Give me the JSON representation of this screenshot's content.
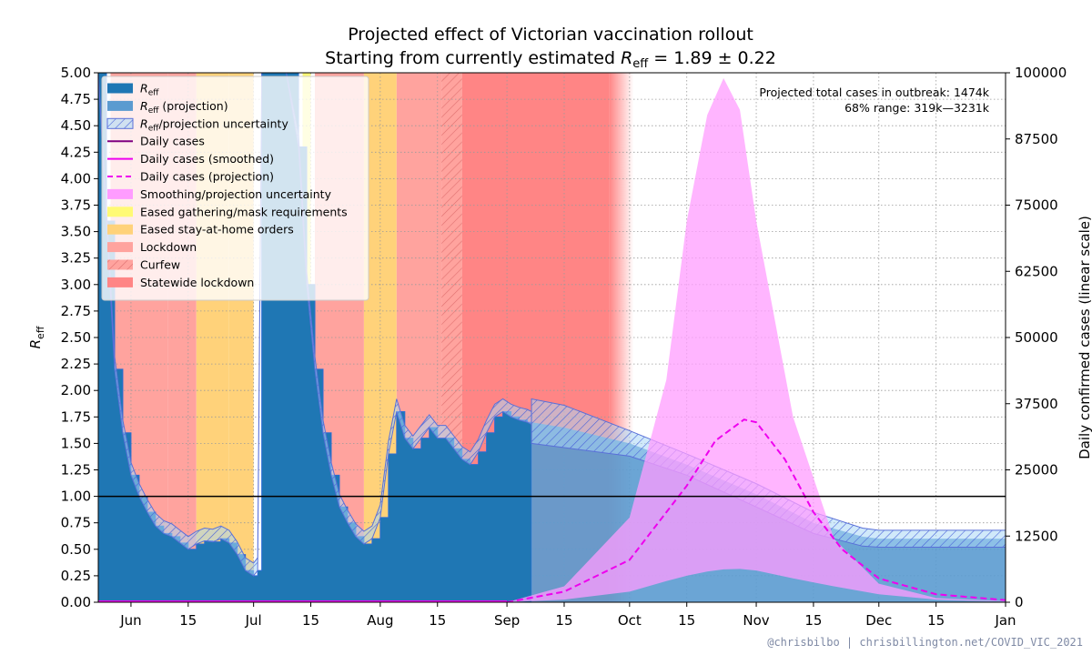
{
  "chart_data": {
    "type": "area",
    "title": "Projected effect of Victorian vaccination rollout",
    "subtitle": "Starting from currently estimated R_eff = 1.89 ± 0.22",
    "ylabel_left": "R_eff",
    "ylabel_right": "Daily confirmed cases (linear scale)",
    "credit": "@chrisbilbo | chrisbillington.net/COVID_VIC_2021",
    "annotation": {
      "line1": "Projected total cases in outbreak:  1474k",
      "line2": "68% range:  319k—3231k"
    },
    "x_range": [
      "2021-05-24",
      "2022-01-01"
    ],
    "x_ticks": [
      {
        "date": "2021-06-01",
        "label": "Jun"
      },
      {
        "date": "2021-06-15",
        "label": "15"
      },
      {
        "date": "2021-07-01",
        "label": "Jul"
      },
      {
        "date": "2021-07-15",
        "label": "15"
      },
      {
        "date": "2021-08-01",
        "label": "Aug"
      },
      {
        "date": "2021-08-15",
        "label": "15"
      },
      {
        "date": "2021-09-01",
        "label": "Sep"
      },
      {
        "date": "2021-09-15",
        "label": "15"
      },
      {
        "date": "2021-10-01",
        "label": "Oct"
      },
      {
        "date": "2021-10-15",
        "label": "15"
      },
      {
        "date": "2021-11-01",
        "label": "Nov"
      },
      {
        "date": "2021-11-15",
        "label": "15"
      },
      {
        "date": "2021-12-01",
        "label": "Dec"
      },
      {
        "date": "2021-12-15",
        "label": "15"
      },
      {
        "date": "2022-01-01",
        "label": "Jan"
      }
    ],
    "y_left": {
      "min": 0,
      "max": 5,
      "ticks": [
        "0.00",
        "0.25",
        "0.50",
        "0.75",
        "1.00",
        "1.25",
        "1.50",
        "1.75",
        "2.00",
        "2.25",
        "2.50",
        "2.75",
        "3.00",
        "3.25",
        "3.50",
        "3.75",
        "4.00",
        "4.25",
        "4.50",
        "4.75",
        "5.00"
      ]
    },
    "y_right": {
      "min": 0,
      "max": 100000,
      "ticks": [
        "0",
        "12500",
        "25000",
        "37500",
        "50000",
        "62500",
        "75000",
        "87500",
        "100000"
      ]
    },
    "reference_line": {
      "y": 1.0
    },
    "grid": true,
    "legend_position": "upper-left",
    "legend": [
      {
        "label": "R_eff",
        "style": "patch",
        "color": "#1f77b4"
      },
      {
        "label": "R_eff (projection)",
        "style": "patch",
        "color": "#5b9bd0"
      },
      {
        "label": "R_eff/projection uncertainty",
        "style": "hatch",
        "color": "#a9d6f5"
      },
      {
        "label": "Daily cases",
        "style": "line",
        "color": "#800080"
      },
      {
        "label": "Daily cases (smoothed)",
        "style": "line",
        "color": "#ee00ee"
      },
      {
        "label": "Daily cases (projection)",
        "style": "dash",
        "color": "#ee00ee"
      },
      {
        "label": "Smoothing/projection uncertainty",
        "style": "patch",
        "color": "#ff9cff"
      },
      {
        "label": "Eased gathering/mask requirements",
        "style": "patch",
        "color": "#fffa75"
      },
      {
        "label": "Eased stay-at-home orders",
        "style": "patch",
        "color": "#ffd27a"
      },
      {
        "label": "Lockdown",
        "style": "patch",
        "color": "#ffa39e"
      },
      {
        "label": "Curfew",
        "style": "hatchred",
        "color": "#ffa39e"
      },
      {
        "label": "Statewide lockdown",
        "style": "patch",
        "color": "#ff8585"
      }
    ],
    "policy_periods": [
      {
        "start": "2021-05-27",
        "end": "2021-06-10",
        "type": "Lockdown",
        "color": "#ffa39e"
      },
      {
        "start": "2021-06-10",
        "end": "2021-06-17",
        "type": "Lockdown",
        "color": "#ffa39e"
      },
      {
        "start": "2021-06-17",
        "end": "2021-06-25",
        "type": "Eased stay-at-home orders",
        "color": "#ffd27a"
      },
      {
        "start": "2021-06-25",
        "end": "2021-07-01",
        "type": "Eased stay-at-home orders",
        "color": "#ffd27a"
      },
      {
        "start": "2021-07-13",
        "end": "2021-07-15",
        "type": "Eased gathering/mask requirements",
        "color": "#fffa75"
      },
      {
        "start": "2021-07-16",
        "end": "2021-07-28",
        "type": "Lockdown",
        "color": "#ffa39e"
      },
      {
        "start": "2021-07-28",
        "end": "2021-08-05",
        "type": "Eased stay-at-home orders",
        "color": "#ffd27a"
      },
      {
        "start": "2021-08-05",
        "end": "2021-08-16",
        "type": "Lockdown",
        "color": "#ffa39e"
      },
      {
        "start": "2021-08-16",
        "end": "2021-08-21",
        "type": "Curfew",
        "color": "#ffa39e"
      },
      {
        "start": "2021-08-21",
        "end": "2021-09-26",
        "type": "Statewide lockdown",
        "color": "#ff8585"
      },
      {
        "start": "2021-09-26",
        "end": "2021-10-02",
        "type": "Statewide lockdown (fading)",
        "color": "#ff8585"
      }
    ],
    "series": [
      {
        "name": "R_eff",
        "color": "#1f77b4",
        "dates": [
          "2021-05-24",
          "2021-05-26",
          "2021-05-28",
          "2021-05-30",
          "2021-06-01",
          "2021-06-03",
          "2021-06-05",
          "2021-06-07",
          "2021-06-09",
          "2021-06-11",
          "2021-06-13",
          "2021-06-15",
          "2021-06-17",
          "2021-06-19",
          "2021-06-21",
          "2021-06-23",
          "2021-06-25",
          "2021-06-27",
          "2021-06-29",
          "2021-07-01",
          "2021-07-02",
          "2021-07-03",
          "2021-07-06",
          "2021-07-09",
          "2021-07-12",
          "2021-07-14",
          "2021-07-16",
          "2021-07-18",
          "2021-07-20",
          "2021-07-22",
          "2021-07-24",
          "2021-07-26",
          "2021-07-28",
          "2021-07-30",
          "2021-08-01",
          "2021-08-03",
          "2021-08-05",
          "2021-08-07",
          "2021-08-09",
          "2021-08-11",
          "2021-08-13",
          "2021-08-15",
          "2021-08-17",
          "2021-08-19",
          "2021-08-21",
          "2021-08-23",
          "2021-08-25",
          "2021-08-27",
          "2021-08-29",
          "2021-08-31",
          "2021-09-02",
          "2021-09-04",
          "2021-09-06",
          "2021-09-07"
        ],
        "values": [
          5.0,
          3.6,
          2.2,
          1.6,
          1.2,
          1.0,
          0.85,
          0.72,
          0.65,
          0.62,
          0.56,
          0.5,
          0.55,
          0.58,
          0.57,
          0.6,
          0.56,
          0.45,
          0.3,
          0.25,
          0.3,
          5.0,
          5.0,
          5.0,
          4.3,
          3.0,
          2.2,
          1.6,
          1.2,
          0.9,
          0.75,
          0.62,
          0.55,
          0.6,
          0.8,
          1.4,
          1.8,
          1.55,
          1.45,
          1.55,
          1.65,
          1.55,
          1.55,
          1.45,
          1.35,
          1.3,
          1.42,
          1.6,
          1.75,
          1.8,
          1.75,
          1.72,
          1.7,
          1.68
        ]
      },
      {
        "name": "R_eff (projection)",
        "color": "#5b9bd0",
        "dates": [
          "2021-09-07",
          "2021-09-15",
          "2021-10-01",
          "2021-10-15",
          "2021-11-01",
          "2021-11-15",
          "2021-11-27",
          "2021-12-01",
          "2022-01-01"
        ],
        "values": [
          1.7,
          1.65,
          1.5,
          1.3,
          1.02,
          0.75,
          0.62,
          0.6,
          0.6
        ]
      },
      {
        "name": "R_eff/projection uncertainty",
        "color": "#a9d6f5",
        "dates": [
          "2021-09-07",
          "2021-09-15",
          "2021-10-01",
          "2021-10-15",
          "2021-11-01",
          "2021-11-15",
          "2021-11-27",
          "2021-12-01",
          "2022-01-01"
        ],
        "upper": [
          1.92,
          1.86,
          1.62,
          1.4,
          1.12,
          0.85,
          0.7,
          0.68,
          0.68
        ],
        "lower": [
          1.5,
          1.46,
          1.38,
          1.2,
          0.9,
          0.65,
          0.53,
          0.52,
          0.52
        ]
      },
      {
        "name": "Daily cases (projection)",
        "color": "#ee00ee",
        "dates": [
          "2021-09-01",
          "2021-09-15",
          "2021-10-01",
          "2021-10-15",
          "2021-10-22",
          "2021-10-29",
          "2021-11-01",
          "2021-11-08",
          "2021-11-15",
          "2021-11-22",
          "2021-12-01",
          "2021-12-15",
          "2022-01-01"
        ],
        "values": [
          0,
          2000,
          8000,
          22000,
          30500,
          34500,
          34000,
          27000,
          17000,
          10000,
          4500,
          1500,
          400
        ]
      },
      {
        "name": "Smoothing/projection uncertainty",
        "color": "#ff9cff",
        "dates": [
          "2021-09-01",
          "2021-09-15",
          "2021-10-01",
          "2021-10-10",
          "2021-10-15",
          "2021-10-20",
          "2021-10-24",
          "2021-10-28",
          "2021-11-01",
          "2021-11-10",
          "2021-11-20",
          "2021-12-01",
          "2021-12-15",
          "2022-01-01"
        ],
        "upper": [
          0,
          3000,
          16000,
          42000,
          72000,
          92000,
          99000,
          93000,
          72000,
          35000,
          12000,
          3500,
          800,
          200
        ],
        "lower": [
          0,
          500,
          2000,
          4000,
          5000,
          5800,
          6200,
          6300,
          6000,
          4500,
          3000,
          1500,
          500,
          100
        ]
      }
    ]
  }
}
